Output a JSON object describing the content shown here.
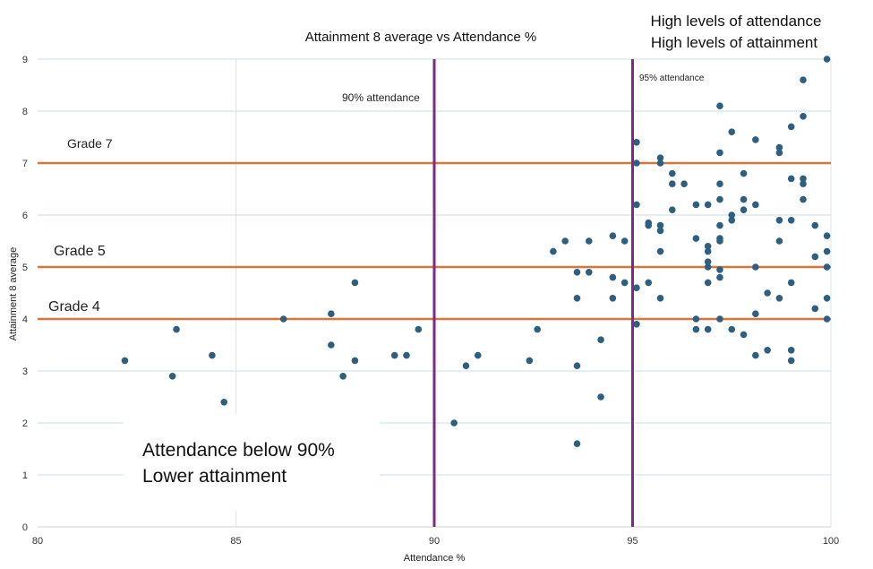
{
  "chart_data": {
    "type": "scatter",
    "title": "Attainment 8 average vs Attendance %",
    "xlabel": "Attendance %",
    "ylabel": "Attainment 8 average",
    "xlim": [
      80,
      100
    ],
    "ylim": [
      0,
      9
    ],
    "xticks": [
      80,
      85,
      90,
      95,
      100
    ],
    "yticks": [
      0,
      1,
      2,
      3,
      4,
      5,
      6,
      7,
      8,
      9
    ],
    "grid": "horizontal",
    "marker_color": "#2f5f7f",
    "grade_line_color": "#d9773a",
    "attendance_line_color": "#7b2a8a",
    "grade_lines": [
      {
        "y": 7,
        "label": "Grade 7"
      },
      {
        "y": 5,
        "label": "Grade 5"
      },
      {
        "y": 4,
        "label": "Grade 4"
      }
    ],
    "attendance_lines": [
      {
        "x": 90,
        "label": "90% attendance"
      },
      {
        "x": 95,
        "label": "95% attendance"
      }
    ],
    "annotations": {
      "top_right": [
        "High levels of attendance",
        "High levels of attainment"
      ],
      "bottom_left": [
        "Attendance below 90%",
        "Lower attainment"
      ]
    },
    "points": [
      [
        82.2,
        3.2
      ],
      [
        83.4,
        2.9
      ],
      [
        83.5,
        3.8
      ],
      [
        84.4,
        3.3
      ],
      [
        84.7,
        2.4
      ],
      [
        86.2,
        4.0
      ],
      [
        87.4,
        4.1
      ],
      [
        87.4,
        3.5
      ],
      [
        87.7,
        2.9
      ],
      [
        88.0,
        4.7
      ],
      [
        88.0,
        3.2
      ],
      [
        89.0,
        3.3
      ],
      [
        89.3,
        3.3
      ],
      [
        89.6,
        3.8
      ],
      [
        90.5,
        2.0
      ],
      [
        90.8,
        3.1
      ],
      [
        91.1,
        3.3
      ],
      [
        92.4,
        3.2
      ],
      [
        92.6,
        3.8
      ],
      [
        93.0,
        5.3
      ],
      [
        93.3,
        5.5
      ],
      [
        93.6,
        1.6
      ],
      [
        93.6,
        3.1
      ],
      [
        93.6,
        4.4
      ],
      [
        93.6,
        4.9
      ],
      [
        93.9,
        5.5
      ],
      [
        93.9,
        4.9
      ],
      [
        94.2,
        3.6
      ],
      [
        94.2,
        2.5
      ],
      [
        94.5,
        5.6
      ],
      [
        94.5,
        4.8
      ],
      [
        94.5,
        4.4
      ],
      [
        94.8,
        4.7
      ],
      [
        94.8,
        5.5
      ],
      [
        95.1,
        7.4
      ],
      [
        95.1,
        7.0
      ],
      [
        95.1,
        6.2
      ],
      [
        95.1,
        4.6
      ],
      [
        95.1,
        3.9
      ],
      [
        95.4,
        5.8
      ],
      [
        95.4,
        5.85
      ],
      [
        95.4,
        4.7
      ],
      [
        95.7,
        7.1
      ],
      [
        95.7,
        7.0
      ],
      [
        95.7,
        5.8
      ],
      [
        95.7,
        5.7
      ],
      [
        95.7,
        5.3
      ],
      [
        95.7,
        4.4
      ],
      [
        96.0,
        6.8
      ],
      [
        96.0,
        6.6
      ],
      [
        96.0,
        6.1
      ],
      [
        96.3,
        6.6
      ],
      [
        96.6,
        6.2
      ],
      [
        96.6,
        5.55
      ],
      [
        96.6,
        4.0
      ],
      [
        96.6,
        3.8
      ],
      [
        96.9,
        6.2
      ],
      [
        96.9,
        5.4
      ],
      [
        96.9,
        5.3
      ],
      [
        96.9,
        5.1
      ],
      [
        96.9,
        5.0
      ],
      [
        96.9,
        4.7
      ],
      [
        96.9,
        3.8
      ],
      [
        97.2,
        8.1
      ],
      [
        97.2,
        7.2
      ],
      [
        97.2,
        6.6
      ],
      [
        97.2,
        6.3
      ],
      [
        97.2,
        5.8
      ],
      [
        97.2,
        5.55
      ],
      [
        97.2,
        5.5
      ],
      [
        97.2,
        4.95
      ],
      [
        97.2,
        4.8
      ],
      [
        97.2,
        4.0
      ],
      [
        97.5,
        7.6
      ],
      [
        97.5,
        6.0
      ],
      [
        97.5,
        5.9
      ],
      [
        97.5,
        3.8
      ],
      [
        97.8,
        6.8
      ],
      [
        97.8,
        6.3
      ],
      [
        97.8,
        6.1
      ],
      [
        97.8,
        3.7
      ],
      [
        98.1,
        7.45
      ],
      [
        98.1,
        6.2
      ],
      [
        98.1,
        5.0
      ],
      [
        98.1,
        4.1
      ],
      [
        98.1,
        3.3
      ],
      [
        98.4,
        4.5
      ],
      [
        98.4,
        3.4
      ],
      [
        98.7,
        7.3
      ],
      [
        98.7,
        7.2
      ],
      [
        98.7,
        5.9
      ],
      [
        98.7,
        5.5
      ],
      [
        98.7,
        4.4
      ],
      [
        99.0,
        7.7
      ],
      [
        99.0,
        6.7
      ],
      [
        99.0,
        5.9
      ],
      [
        99.0,
        4.7
      ],
      [
        99.0,
        3.4
      ],
      [
        99.0,
        3.2
      ],
      [
        99.3,
        8.6
      ],
      [
        99.3,
        7.9
      ],
      [
        99.3,
        6.7
      ],
      [
        99.3,
        6.6
      ],
      [
        99.3,
        6.3
      ],
      [
        99.6,
        5.8
      ],
      [
        99.6,
        5.2
      ],
      [
        99.6,
        4.2
      ],
      [
        99.9,
        9.0
      ],
      [
        99.9,
        5.6
      ],
      [
        99.9,
        5.3
      ],
      [
        99.9,
        5.0
      ],
      [
        99.9,
        4.4
      ],
      [
        99.9,
        4.0
      ]
    ]
  }
}
